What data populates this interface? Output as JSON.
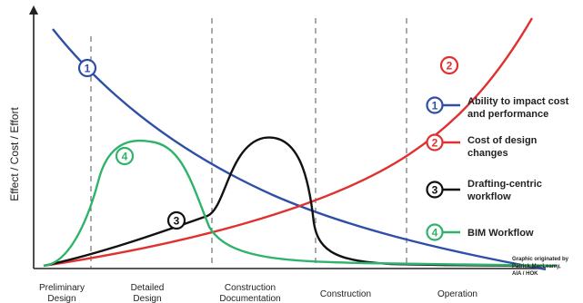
{
  "axis": {
    "y_label": "Effect / Cost / Effort"
  },
  "phases": [
    {
      "lines": [
        "Preliminary",
        "Design"
      ]
    },
    {
      "lines": [
        "Detailed",
        "Design"
      ]
    },
    {
      "lines": [
        "Construction",
        "Documentation"
      ]
    },
    {
      "lines": [
        "Construction"
      ]
    },
    {
      "lines": [
        "Operation"
      ]
    }
  ],
  "curves": [
    {
      "id": "1",
      "color": "#2e4ea8",
      "legend": [
        "Ability to impact cost",
        "and performance"
      ]
    },
    {
      "id": "2",
      "color": "#e03131",
      "legend": [
        "Cost of design",
        "changes"
      ]
    },
    {
      "id": "3",
      "color": "#111111",
      "legend": [
        "Drafting-centric",
        "workflow"
      ]
    },
    {
      "id": "4",
      "color": "#2fb36a",
      "legend": [
        "BIM Workflow"
      ]
    }
  ],
  "credit": [
    "Graphic originated by",
    "Patrick MacLeamy,",
    "AIA / HOK"
  ]
}
